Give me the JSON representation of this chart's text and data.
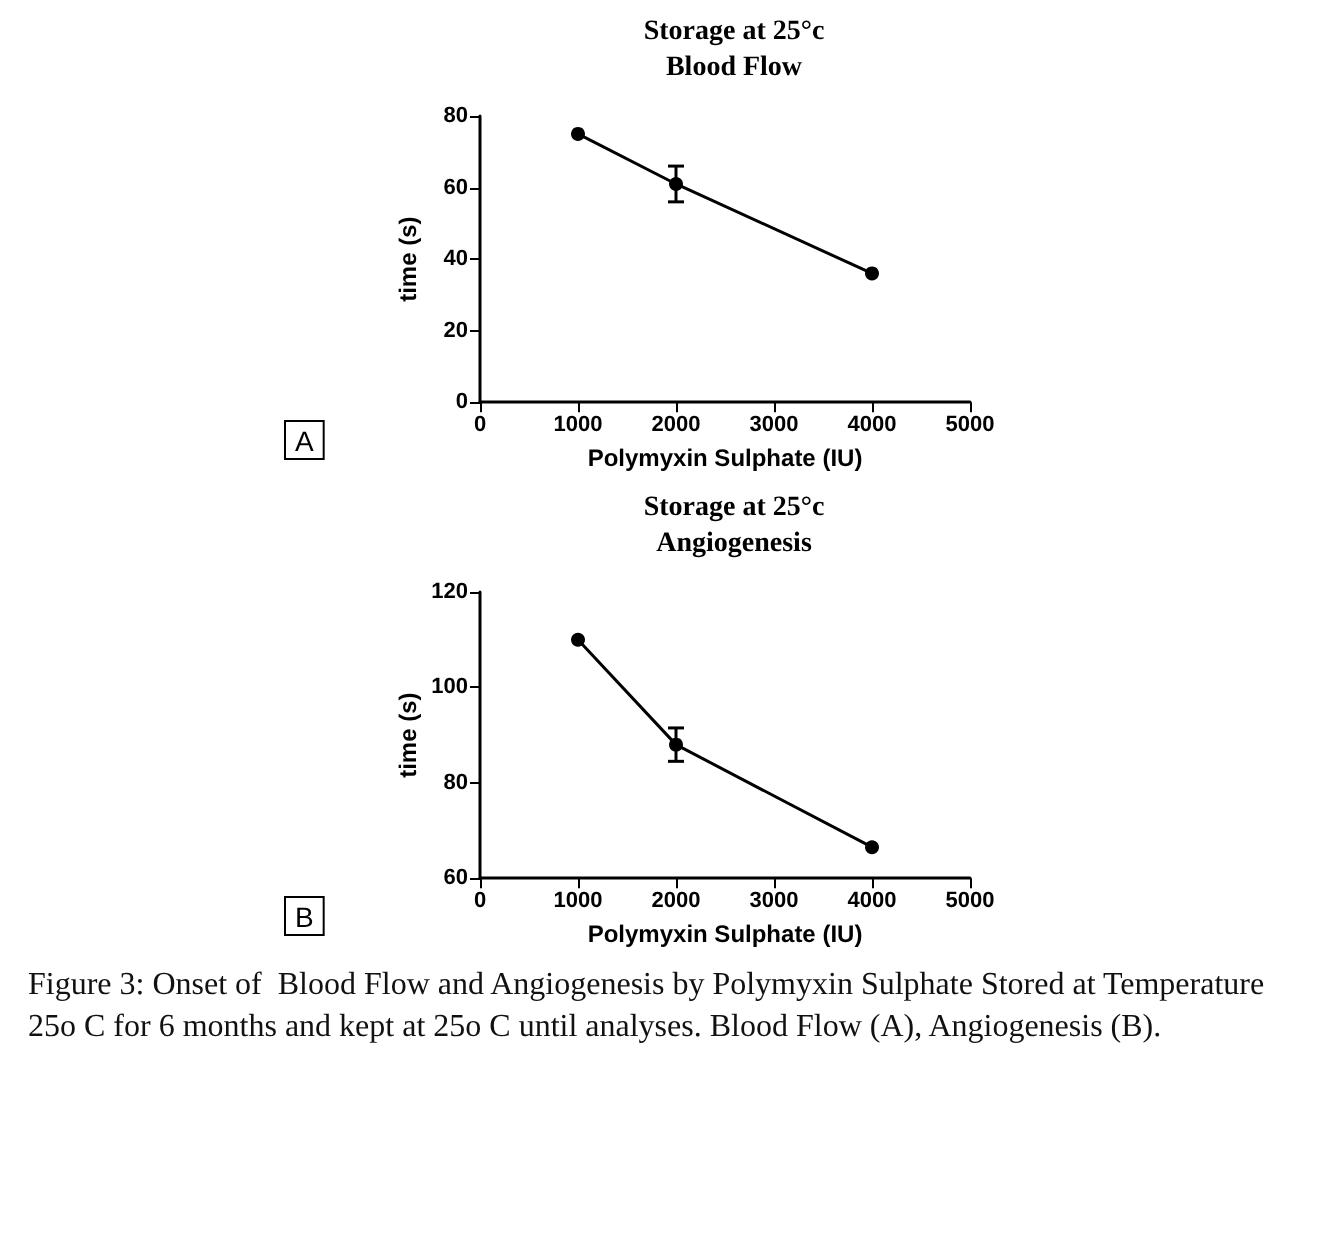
{
  "chart_data": [
    {
      "type": "line",
      "title": "Storage at 25°c",
      "subtitle": "Blood Flow",
      "xlabel": "Polymyxin Sulphate (IU)",
      "ylabel": "time (s)",
      "x": [
        1000,
        2000,
        4000
      ],
      "series": [
        {
          "color": "#000000",
          "values": [
            75,
            61,
            36
          ],
          "errors": [
            null,
            5,
            null
          ]
        }
      ],
      "xlim": [
        0,
        5000
      ],
      "xticks": [
        0,
        1000,
        2000,
        3000,
        4000,
        5000
      ],
      "ylim": [
        0,
        80
      ],
      "yticks": [
        0,
        20,
        40,
        60,
        80
      ],
      "grid": false,
      "marker": "circle",
      "line_style": "solid",
      "annotations": [
        "A"
      ]
    },
    {
      "type": "line",
      "title": "Storage at 25°c",
      "subtitle": "Angiogenesis",
      "xlabel": "Polymyxin Sulphate (IU)",
      "ylabel": "time (s)",
      "x": [
        1000,
        2000,
        4000
      ],
      "series": [
        {
          "color": "#000000",
          "values": [
            110,
            88,
            66.5
          ],
          "errors": [
            null,
            3.5,
            null
          ]
        }
      ],
      "xlim": [
        0,
        5000
      ],
      "xticks": [
        0,
        1000,
        2000,
        3000,
        4000,
        5000
      ],
      "ylim": [
        60,
        120
      ],
      "yticks": [
        60,
        80,
        100,
        120
      ],
      "grid": false,
      "marker": "circle",
      "line_style": "solid",
      "annotations": [
        "B",
        "Figure 3: Onset of  Blood Flow and Angiogenesis by Polymyxin Sulphate Stored at Temperature 25o C for 6 months and kept at 25o C until analyses. Blood Flow (A), Angiogenesis (B)."
      ]
    }
  ]
}
